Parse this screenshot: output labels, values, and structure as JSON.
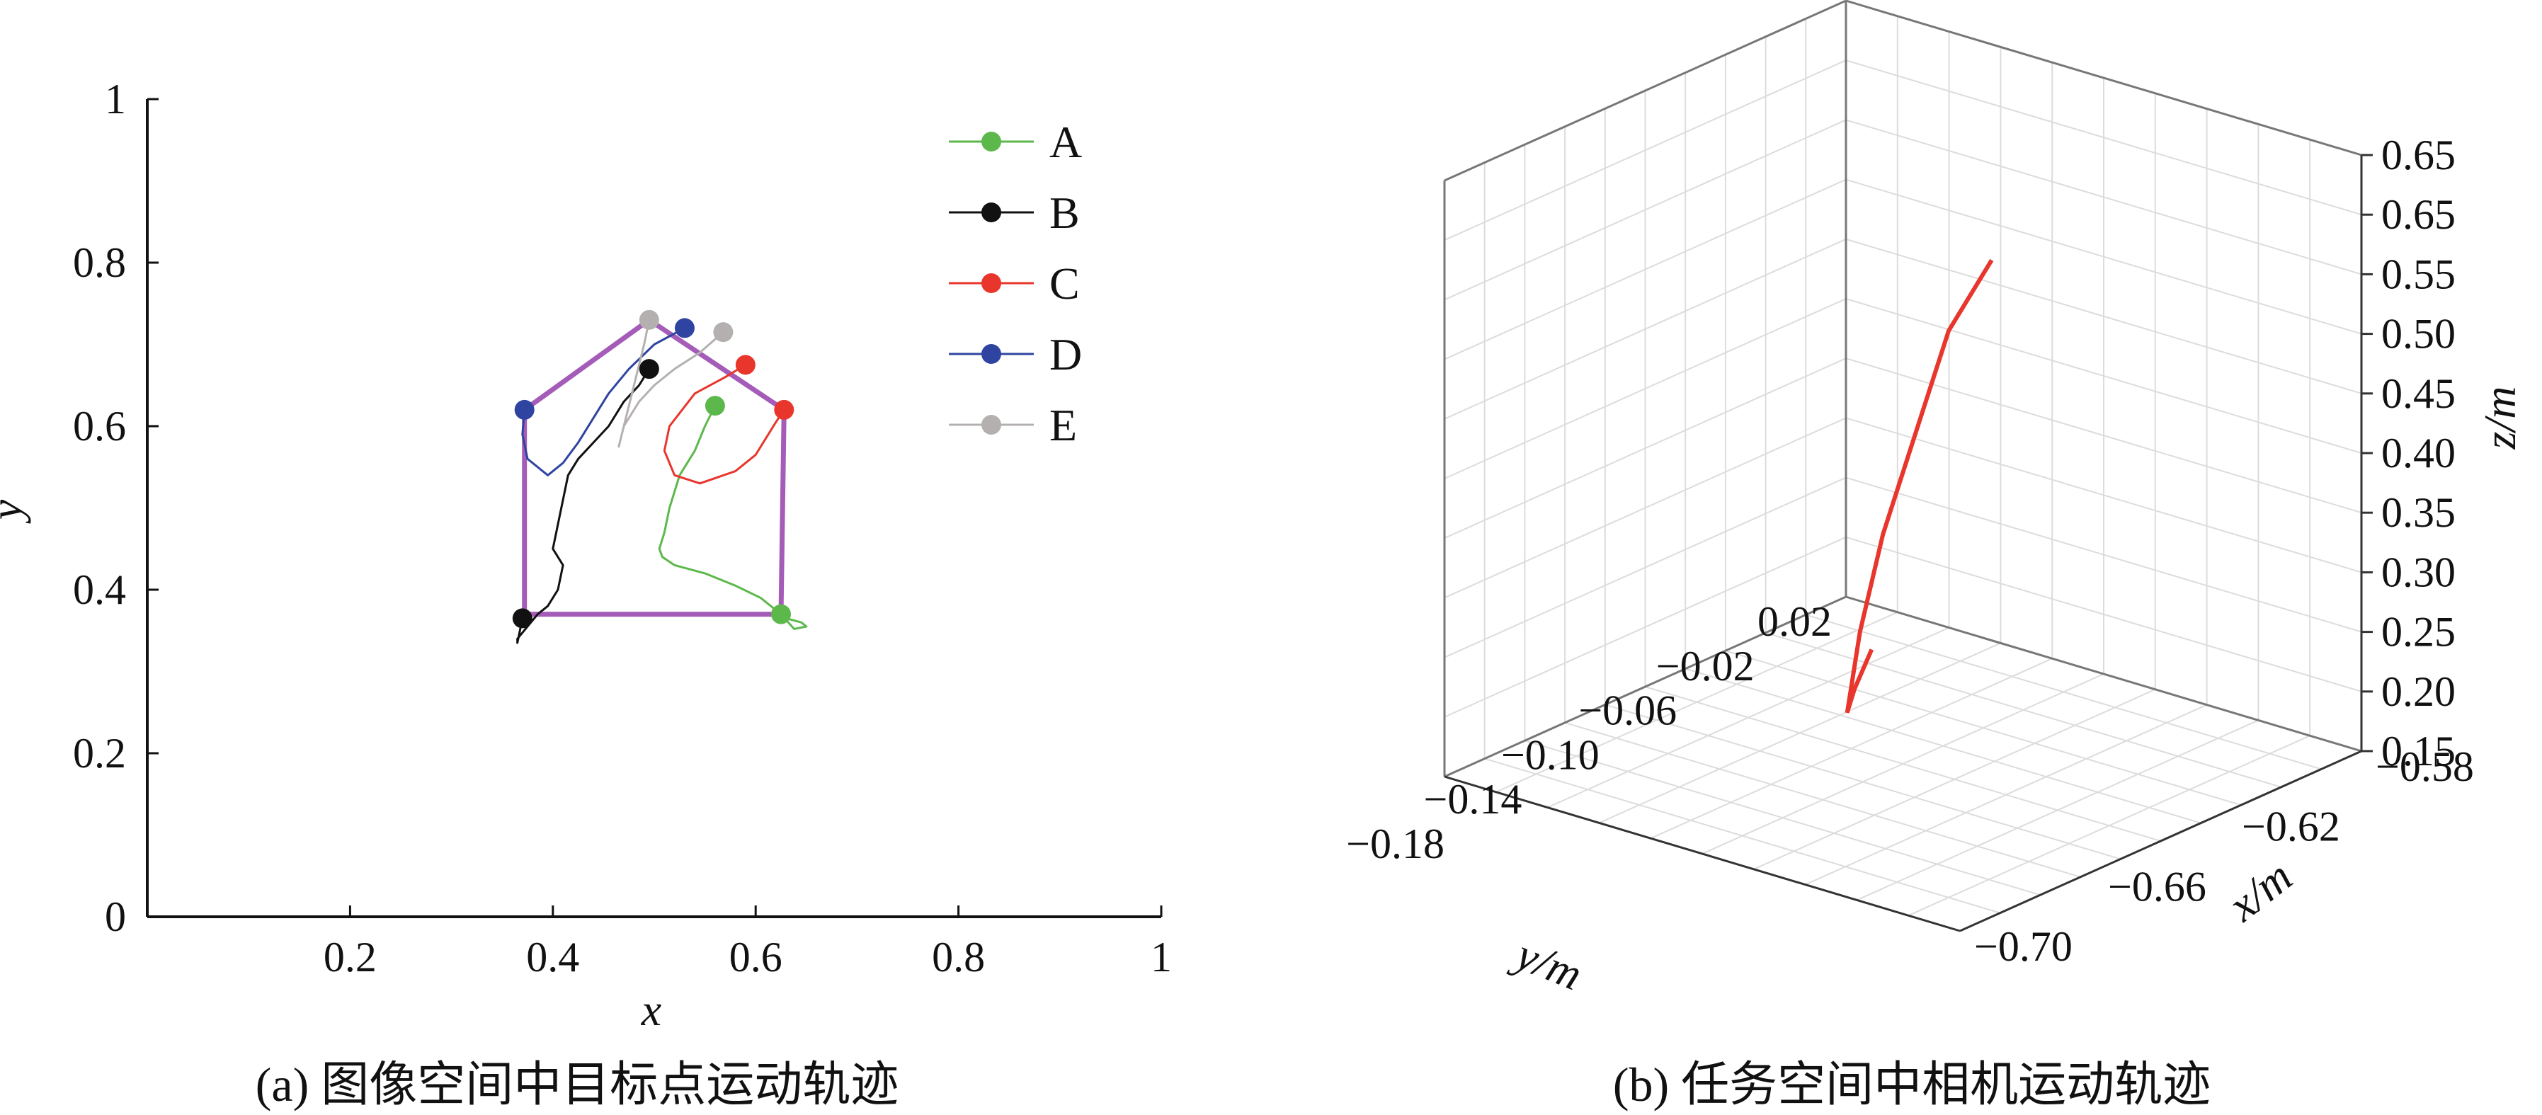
{
  "figure": {
    "caption_a": "(a) 图像空间中目标点运动轨迹",
    "caption_b": "(b) 任务空间中相机运动轨迹"
  },
  "colors": {
    "A": "#5db84b",
    "B": "#111111",
    "C": "#e8362c",
    "D": "#2f44a0",
    "E": "#b4b0b0",
    "polygon": "#a55cb8",
    "camera": "#e8362c",
    "grid": "#dcdcdc",
    "frame": "#777777"
  },
  "chart_data": [
    {
      "type": "line",
      "panel": "a",
      "xlabel": "x",
      "ylabel": "y",
      "xlim": [
        0,
        1
      ],
      "ylim": [
        0,
        1
      ],
      "x_ticks": [
        "0.2",
        "0.4",
        "0.6",
        "0.8",
        "1"
      ],
      "y_ticks": [
        "0",
        "0.2",
        "0.4",
        "0.6",
        "0.8",
        "1"
      ],
      "legend_position": "top-right",
      "series": [
        {
          "name": "A",
          "start": [
            0.56,
            0.625
          ],
          "end": [
            0.625,
            0.37
          ],
          "x": [
            0.56,
            0.55,
            0.54,
            0.525,
            0.515,
            0.51,
            0.505,
            0.508,
            0.52,
            0.55,
            0.58,
            0.605,
            0.62,
            0.63,
            0.645,
            0.65,
            0.638,
            0.625
          ],
          "y": [
            0.625,
            0.6,
            0.57,
            0.54,
            0.5,
            0.47,
            0.45,
            0.44,
            0.43,
            0.42,
            0.405,
            0.39,
            0.375,
            0.365,
            0.36,
            0.355,
            0.352,
            0.37
          ]
        },
        {
          "name": "B",
          "start": [
            0.495,
            0.67
          ],
          "end": [
            0.37,
            0.365
          ],
          "x": [
            0.495,
            0.485,
            0.47,
            0.455,
            0.44,
            0.425,
            0.415,
            0.41,
            0.405,
            0.4,
            0.41,
            0.405,
            0.395,
            0.385,
            0.375,
            0.365,
            0.365,
            0.37
          ],
          "y": [
            0.67,
            0.65,
            0.63,
            0.6,
            0.58,
            0.56,
            0.54,
            0.51,
            0.48,
            0.45,
            0.43,
            0.4,
            0.38,
            0.37,
            0.355,
            0.34,
            0.335,
            0.365
          ]
        },
        {
          "name": "C",
          "start": [
            0.59,
            0.675
          ],
          "end": [
            0.628,
            0.62
          ],
          "x": [
            0.59,
            0.57,
            0.54,
            0.515,
            0.51,
            0.52,
            0.545,
            0.58,
            0.6,
            0.61,
            0.62,
            0.628
          ],
          "y": [
            0.675,
            0.66,
            0.64,
            0.6,
            0.57,
            0.54,
            0.53,
            0.545,
            0.565,
            0.585,
            0.605,
            0.62
          ]
        },
        {
          "name": "D",
          "start": [
            0.53,
            0.72
          ],
          "end": [
            0.372,
            0.62
          ],
          "x": [
            0.53,
            0.5,
            0.475,
            0.455,
            0.44,
            0.425,
            0.41,
            0.395,
            0.375,
            0.37,
            0.372
          ],
          "y": [
            0.72,
            0.7,
            0.67,
            0.64,
            0.61,
            0.58,
            0.555,
            0.54,
            0.56,
            0.59,
            0.62
          ]
        },
        {
          "name": "E",
          "start": [
            0.568,
            0.715
          ],
          "end": [
            0.495,
            0.73
          ],
          "x": [
            0.568,
            0.545,
            0.52,
            0.5,
            0.485,
            0.47,
            0.465,
            0.47,
            0.48,
            0.49,
            0.495
          ],
          "y": [
            0.715,
            0.69,
            0.67,
            0.65,
            0.63,
            0.6,
            0.575,
            0.6,
            0.65,
            0.7,
            0.73
          ]
        }
      ],
      "target_polygon": {
        "name": "",
        "x": [
          0.372,
          0.372,
          0.625,
          0.628,
          0.495,
          0.372
        ],
        "y": [
          0.62,
          0.37,
          0.37,
          0.62,
          0.73,
          0.62
        ]
      }
    },
    {
      "type": "line",
      "panel": "b",
      "projection": "3d",
      "xlabel": "x/m",
      "ylabel": "y/m",
      "zlabel": "z/m",
      "xlim": [
        -0.58,
        -0.7
      ],
      "ylim": [
        0.02,
        -0.18
      ],
      "zlim": [
        0.15,
        0.65
      ],
      "x_ticks": [
        "-0.70",
        "-0.66",
        "-0.62",
        "-0.58"
      ],
      "y_ticks": [
        "0.02",
        "-0.02",
        "-0.06",
        "-0.10",
        "-0.14",
        "-0.18"
      ],
      "z_ticks": [
        "0.65",
        "0.65",
        "0.55",
        "0.50",
        "0.45",
        "0.40",
        "0.35",
        "0.30",
        "0.25",
        "0.20",
        "0.15"
      ],
      "grid": true,
      "series": [
        {
          "x": [
            -0.6,
            -0.61,
            -0.62,
            -0.63,
            -0.64,
            -0.65,
            -0.66,
            -0.67
          ],
          "y": [
            -0.01,
            -0.04,
            -0.065,
            -0.08,
            -0.09,
            -0.095,
            -0.1,
            -0.1
          ],
          "z": [
            0.15,
            0.15,
            0.16,
            0.25,
            0.35,
            0.45,
            0.55,
            0.62
          ]
        }
      ]
    }
  ]
}
